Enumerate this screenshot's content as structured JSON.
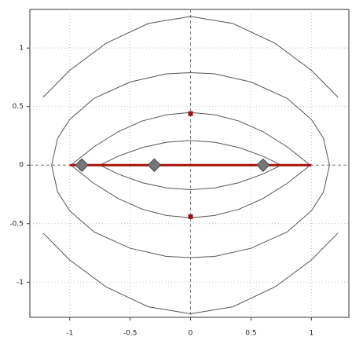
{
  "chart_data": {
    "type": "line",
    "xlim": [
      -1.33,
      1.31
    ],
    "ylim": [
      -1.3,
      1.33
    ],
    "xticks": [
      -1,
      -0.5,
      0,
      0.5,
      1
    ],
    "yticks": [
      -1,
      -0.5,
      0,
      0.5,
      1
    ],
    "grid": true,
    "series": [
      {
        "color": "#555555",
        "x": [
          -1.22,
          -1,
          -0.7,
          -0.35,
          0,
          0.35,
          0.7,
          1,
          1.22
        ],
        "values": [
          0.58,
          0.81,
          1.04,
          1.21,
          1.27,
          1.21,
          1.04,
          0.81,
          0.58
        ]
      },
      {
        "color": "#555555",
        "x": [
          -1.22,
          -1,
          -0.7,
          -0.35,
          0,
          0.35,
          0.7,
          1,
          1.22
        ],
        "values": [
          -0.58,
          -0.81,
          -1.04,
          -1.21,
          -1.27,
          -1.21,
          -1.04,
          -0.81,
          -0.58
        ]
      },
      {
        "color": "#555555",
        "x": [
          -1.15,
          -1.1,
          -1,
          -0.8,
          -0.5,
          -0.2,
          0,
          0.2,
          0.5,
          0.8,
          1,
          1.1,
          1.15,
          1.1,
          1,
          0.8,
          0.5,
          0.2,
          0,
          -0.2,
          -0.5,
          -0.8,
          -1,
          -1.1,
          -1.15
        ],
        "values": [
          0,
          0.23,
          0.39,
          0.57,
          0.71,
          0.78,
          0.79,
          0.78,
          0.71,
          0.57,
          0.39,
          0.23,
          0,
          -0.23,
          -0.39,
          -0.57,
          -0.71,
          -0.78,
          -0.79,
          -0.78,
          -0.71,
          -0.57,
          -0.39,
          -0.23,
          0
        ]
      },
      {
        "color": "#555555",
        "x": [
          -0.99,
          -0.8,
          -0.6,
          -0.4,
          -0.2,
          0,
          0.2,
          0.4,
          0.6,
          0.8,
          0.99,
          0.8,
          0.6,
          0.4,
          0.2,
          0,
          -0.2,
          -0.4,
          -0.6,
          -0.8,
          -0.99
        ],
        "values": [
          0,
          0.156,
          0.285,
          0.377,
          0.43,
          0.45,
          0.43,
          0.377,
          0.285,
          0.156,
          0,
          -0.156,
          -0.285,
          -0.377,
          -0.43,
          -0.45,
          -0.43,
          -0.377,
          -0.285,
          -0.156,
          0
        ]
      },
      {
        "color": "#555555",
        "x": [
          -0.75,
          -0.6,
          -0.4,
          -0.2,
          0,
          0.2,
          0.4,
          0.6,
          0.75,
          0.6,
          0.4,
          0.2,
          0,
          -0.2,
          -0.4,
          -0.6,
          -0.75
        ],
        "values": [
          0,
          0.076,
          0.15,
          0.195,
          0.21,
          0.195,
          0.15,
          0.076,
          0,
          -0.076,
          -0.15,
          -0.195,
          -0.21,
          -0.195,
          -0.15,
          -0.076,
          0
        ]
      },
      {
        "color": "#aa1111",
        "width": 3,
        "x": [
          -1,
          1
        ],
        "values": [
          0,
          0
        ]
      }
    ],
    "markers": [
      {
        "shape": "diamond",
        "color": "#777777",
        "x": [
          -0.9,
          -0.3,
          0.6
        ],
        "values": [
          0,
          0,
          0
        ]
      },
      {
        "shape": "square",
        "color": "#991111",
        "x": [
          0,
          0
        ],
        "values": [
          0.44,
          -0.44
        ]
      }
    ]
  }
}
